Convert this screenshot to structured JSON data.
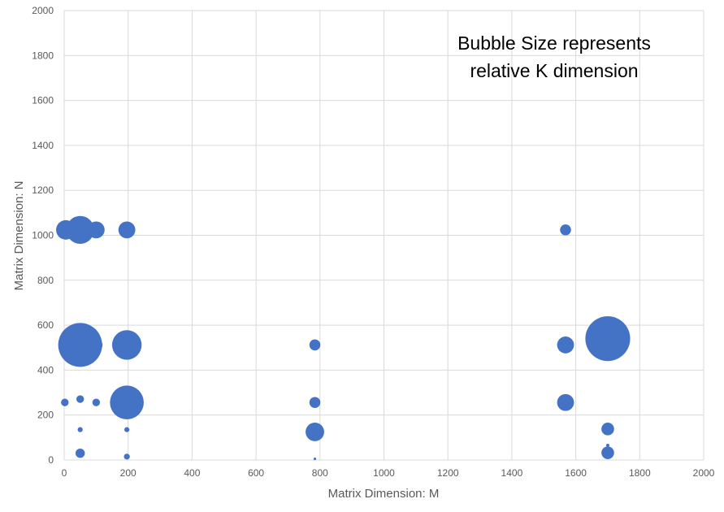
{
  "chart_data": {
    "type": "scatter",
    "subtype": "bubble",
    "title": "",
    "annotation": [
      "Bubble Size represents",
      "relative K dimension"
    ],
    "xlabel": "Matrix Dimension: M",
    "ylabel": "Matrix Dimension: N",
    "xlim": [
      0,
      2000
    ],
    "ylim": [
      0,
      2000
    ],
    "xticks": [
      0,
      200,
      400,
      600,
      800,
      1000,
      1200,
      1400,
      1600,
      1800,
      2000
    ],
    "yticks": [
      0,
      200,
      400,
      600,
      800,
      1000,
      1200,
      1400,
      1600,
      1800,
      2000
    ],
    "grid": true,
    "bubble_color": "#4472C4",
    "size_note": "relative bubble size (proportional to K)",
    "points": [
      {
        "x": 5,
        "y": 1024,
        "size": 2.3
      },
      {
        "x": 50,
        "y": 1024,
        "size": 3.3
      },
      {
        "x": 100,
        "y": 1024,
        "size": 2.0
      },
      {
        "x": 196,
        "y": 1024,
        "size": 2.0
      },
      {
        "x": 1568,
        "y": 1024,
        "size": 1.3
      },
      {
        "x": 2,
        "y": 512,
        "size": 1.3
      },
      {
        "x": 50,
        "y": 512,
        "size": 5.2
      },
      {
        "x": 100,
        "y": 512,
        "size": 1.5
      },
      {
        "x": 196,
        "y": 512,
        "size": 3.5
      },
      {
        "x": 784,
        "y": 512,
        "size": 1.3
      },
      {
        "x": 1568,
        "y": 512,
        "size": 2.0
      },
      {
        "x": 1700,
        "y": 540,
        "size": 5.3
      },
      {
        "x": 2,
        "y": 256,
        "size": 0.9
      },
      {
        "x": 50,
        "y": 271,
        "size": 0.9
      },
      {
        "x": 100,
        "y": 256,
        "size": 0.9
      },
      {
        "x": 196,
        "y": 256,
        "size": 4.0
      },
      {
        "x": 784,
        "y": 256,
        "size": 1.3
      },
      {
        "x": 1568,
        "y": 256,
        "size": 2.0
      },
      {
        "x": 50,
        "y": 135,
        "size": 0.6
      },
      {
        "x": 196,
        "y": 135,
        "size": 0.6
      },
      {
        "x": 784,
        "y": 125,
        "size": 2.2
      },
      {
        "x": 1700,
        "y": 138,
        "size": 1.5
      },
      {
        "x": 1700,
        "y": 65,
        "size": 0.4
      },
      {
        "x": 50,
        "y": 30,
        "size": 1.1
      },
      {
        "x": 196,
        "y": 15,
        "size": 0.7
      },
      {
        "x": 784,
        "y": 5,
        "size": 0.3
      },
      {
        "x": 1700,
        "y": 32,
        "size": 1.5
      }
    ]
  }
}
